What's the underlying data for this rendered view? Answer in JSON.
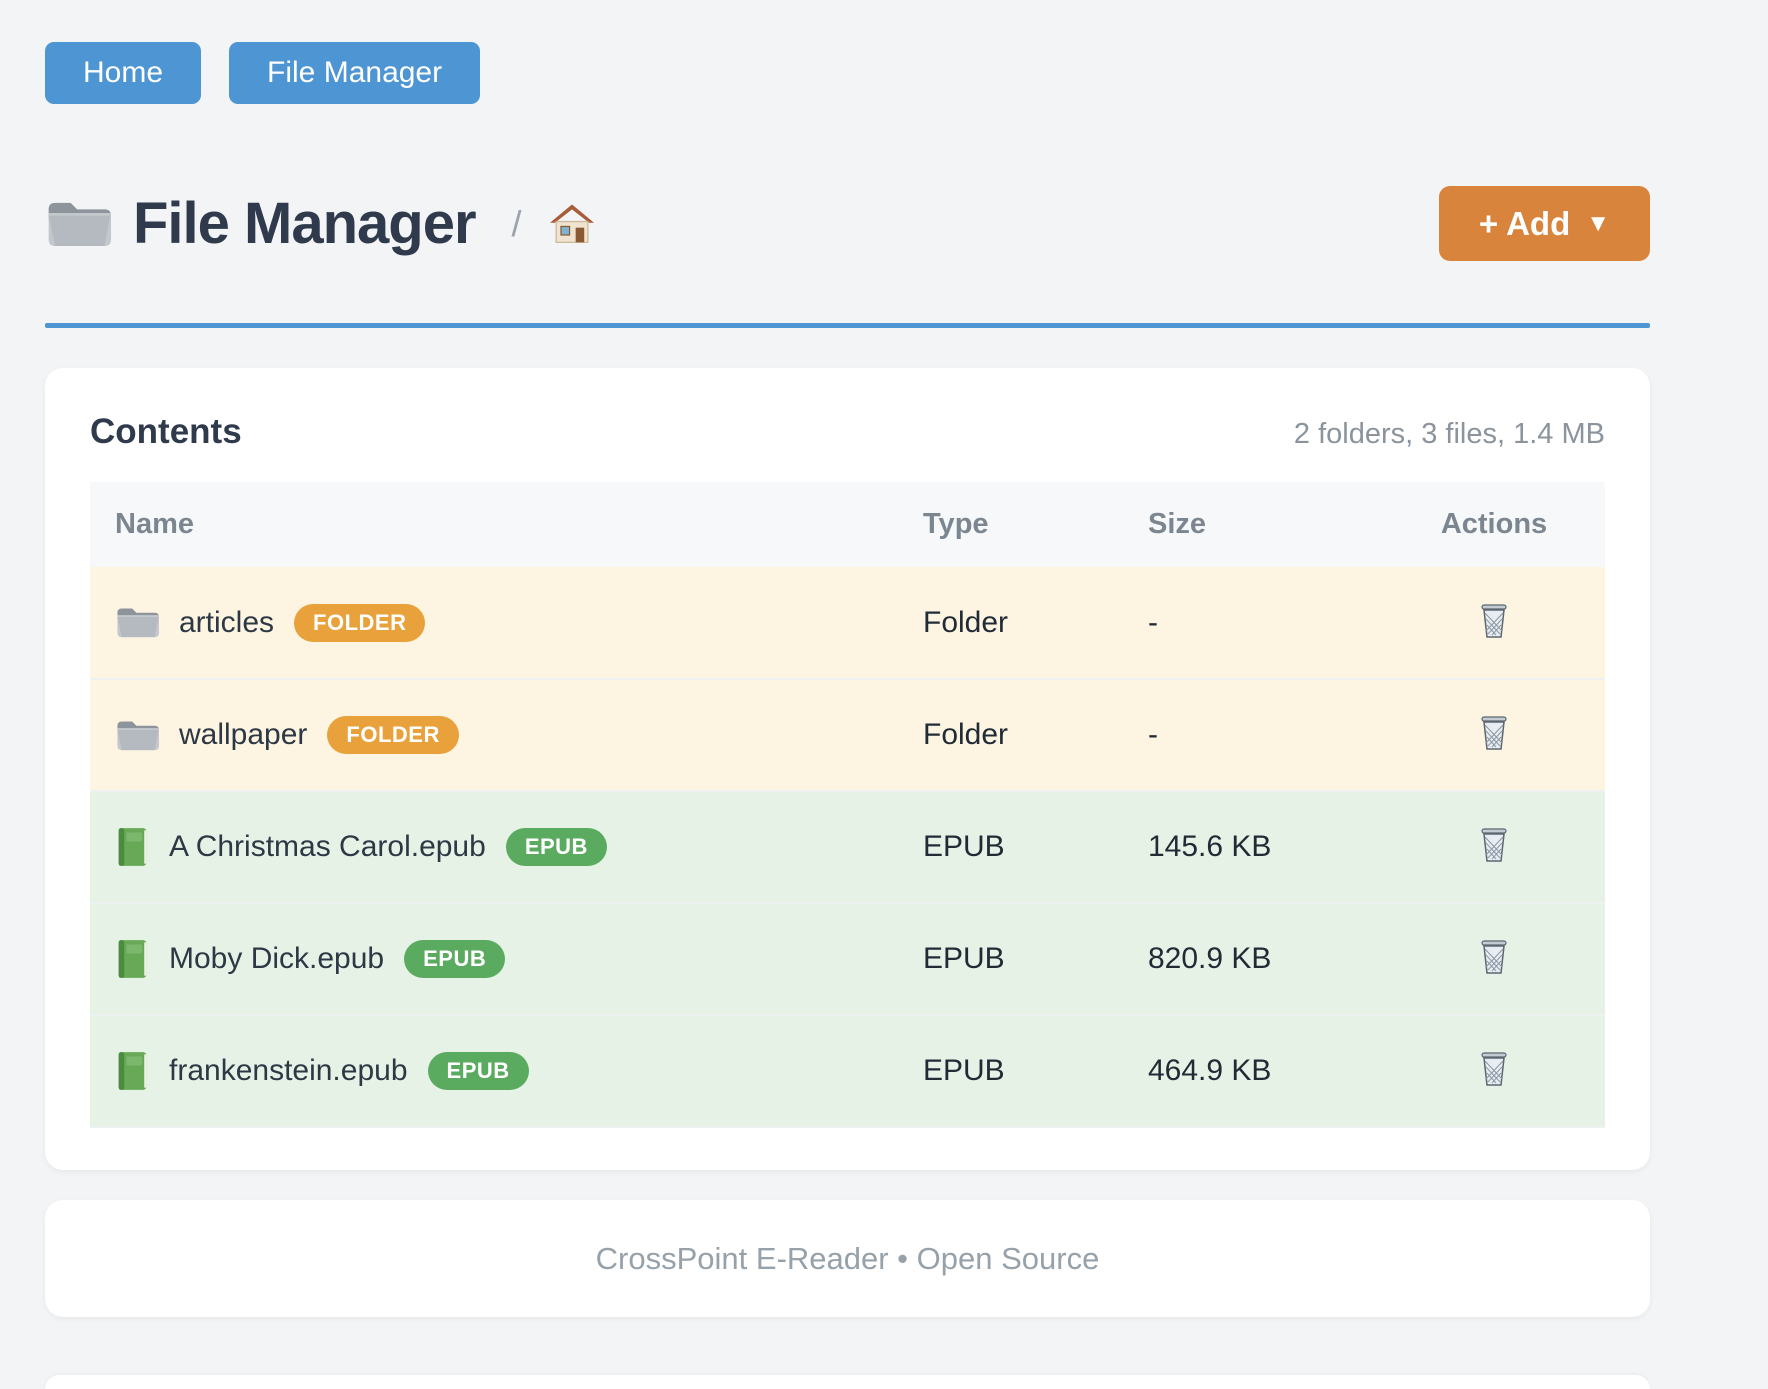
{
  "nav": {
    "buttons": [
      {
        "label": "Home"
      },
      {
        "label": "File Manager"
      }
    ]
  },
  "header": {
    "title": "File Manager",
    "breadcrumb_separator": "/",
    "add_button": {
      "label": "+ Add",
      "caret": "▼"
    }
  },
  "contents_card": {
    "title": "Contents",
    "summary": "2 folders, 3 files, 1.4 MB",
    "table": {
      "columns": [
        "Name",
        "Type",
        "Size",
        "Actions"
      ],
      "rows": [
        {
          "name": "articles",
          "kind": "folder",
          "badge": "FOLDER",
          "type": "Folder",
          "size": "-"
        },
        {
          "name": "wallpaper",
          "kind": "folder",
          "badge": "FOLDER",
          "type": "Folder",
          "size": "-"
        },
        {
          "name": "A Christmas Carol.epub",
          "kind": "epub",
          "badge": "EPUB",
          "type": "EPUB",
          "size": "145.6 KB"
        },
        {
          "name": "Moby Dick.epub",
          "kind": "epub",
          "badge": "EPUB",
          "type": "EPUB",
          "size": "820.9 KB"
        },
        {
          "name": "frankenstein.epub",
          "kind": "epub",
          "badge": "EPUB",
          "type": "EPUB",
          "size": "464.9 KB"
        }
      ]
    }
  },
  "footer": {
    "text": "CrossPoint E-Reader • Open Source"
  },
  "icons": {
    "title": "folder-icon",
    "breadcrumb": "home-icon",
    "folder_row": "folder-icon",
    "epub_row": "book-icon",
    "actions": "trash-icon"
  },
  "colors": {
    "nav_button": "#4e95d4",
    "rule": "#4e95d4",
    "add_button": "#d9843c",
    "badge_folder": "#e9a23b",
    "badge_epub": "#5aab60",
    "row_folder_bg": "#fdf4e1",
    "row_epub_bg": "#e7f2e7",
    "page_bg": "#f3f4f5",
    "heading_text": "#2f3a4c",
    "muted_text": "#8b949c"
  }
}
